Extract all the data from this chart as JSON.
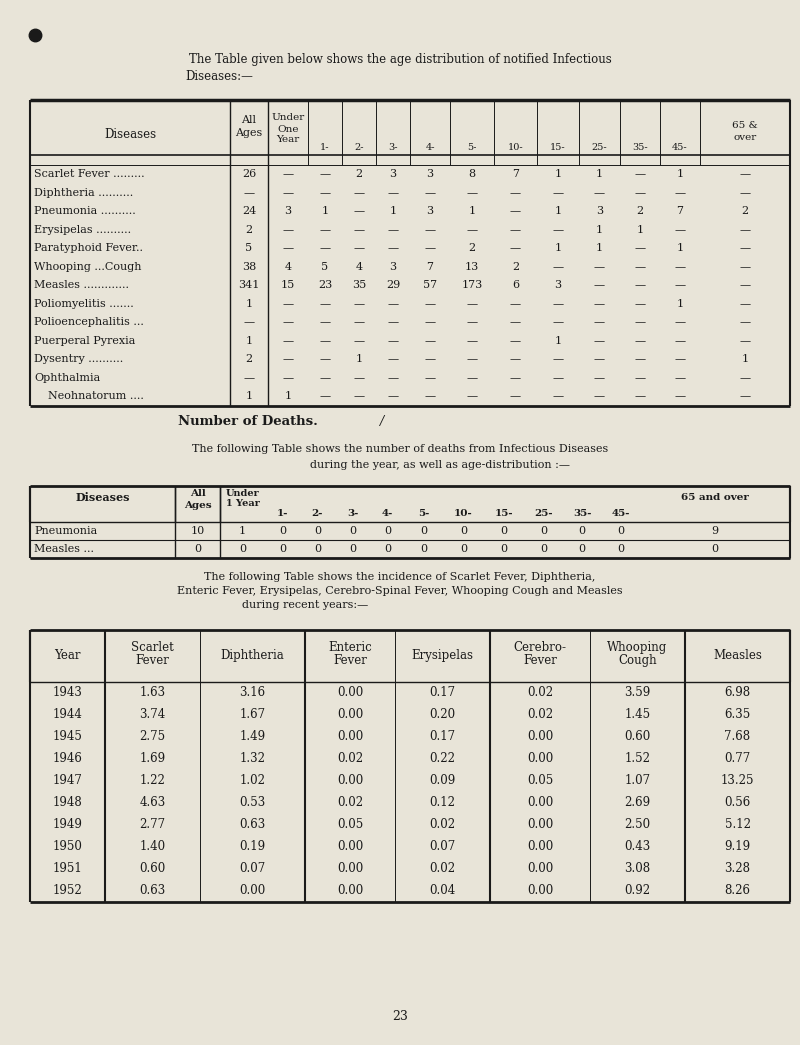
{
  "bg_color": "#e8e4d8",
  "title1": "The Table given below shows the age distribution of notified Infectious",
  "title2": "Diseases:—",
  "table1_rows": [
    [
      "Scarlet Fever .........",
      "26",
      "—",
      "—",
      "2",
      "3",
      "3",
      "8",
      "7",
      "1",
      "1",
      "—",
      "1",
      "—"
    ],
    [
      "Diphtheria ..........",
      "—",
      "—",
      "—",
      "—",
      "—",
      "—",
      "—",
      "—",
      "—",
      "—",
      "—",
      "—",
      "—"
    ],
    [
      "Pneumonia ..........",
      "24",
      "3",
      "1",
      "—",
      "1",
      "3",
      "1",
      "—",
      "1",
      "3",
      "2",
      "7",
      "2"
    ],
    [
      "Erysipelas ..........",
      "2",
      "—",
      "—",
      "—",
      "—",
      "—",
      "—",
      "—",
      "—",
      "1",
      "1",
      "—",
      "—"
    ],
    [
      "Paratyphoid Fever..",
      "5",
      "—",
      "—",
      "—",
      "—",
      "—",
      "2",
      "—",
      "1",
      "1",
      "—",
      "1",
      "—"
    ],
    [
      "Whooping ...Cough",
      "38",
      "4",
      "5",
      "4",
      "3",
      "7",
      "13",
      "2",
      "—",
      "—",
      "—",
      "—",
      "—"
    ],
    [
      "Measles .............",
      "341",
      "15",
      "23",
      "35",
      "29",
      "57",
      "173",
      "6",
      "3",
      "—",
      "—",
      "—",
      "—"
    ],
    [
      "Poliomyelitis .......",
      "1",
      "—",
      "—",
      "—",
      "—",
      "—",
      "—",
      "—",
      "—",
      "—",
      "—",
      "1",
      "—"
    ],
    [
      "Polioencephalitis ...",
      "—",
      "—",
      "—",
      "—",
      "—",
      "—",
      "—",
      "—",
      "—",
      "—",
      "—",
      "—",
      "—"
    ],
    [
      "Puerperal Pyrexia",
      "1",
      "—",
      "—",
      "—",
      "—",
      "—",
      "—",
      "—",
      "1",
      "—",
      "—",
      "—",
      "—"
    ],
    [
      "Dysentry ..........",
      "2",
      "—",
      "—",
      "1",
      "—",
      "—",
      "—",
      "—",
      "—",
      "—",
      "—",
      "—",
      "1"
    ],
    [
      "Ophthalmia",
      "—",
      "—",
      "—",
      "—",
      "—",
      "—",
      "—",
      "—",
      "—",
      "—",
      "—",
      "—",
      "—"
    ],
    [
      "    Neohnatorum ....",
      "1",
      "1",
      "—",
      "—",
      "—",
      "—",
      "—",
      "—",
      "—",
      "—",
      "—",
      "—",
      "—"
    ]
  ],
  "deaths_title": "Number of Deaths.",
  "deaths_italic": "/",
  "deaths_intro1": "The following Table shows the number of deaths from Infectious Diseases",
  "deaths_intro2": "during the year, as well as age-distribution :—",
  "table2_rows": [
    [
      "Pneumonia",
      "10",
      "1",
      "0",
      "0",
      "0",
      "0",
      "0",
      "0",
      "0",
      "0",
      "0",
      "0",
      "9"
    ],
    [
      "Measles ...",
      "0",
      "0",
      "0",
      "0",
      "0",
      "0",
      "0",
      "0",
      "0",
      "0",
      "0",
      "0",
      "0"
    ]
  ],
  "incidence_intro1": "The following Table shows the incidence of Scarlet Fever, Diphtheria,",
  "incidence_intro2": "Enteric Fever, Erysipelas, Cerebro-Spinal Fever, Whooping Cough and Measles",
  "incidence_intro3": "during recent years:—",
  "table3_rows": [
    [
      "1943",
      "1.63",
      "3.16",
      "0.00",
      "0.17",
      "0.02",
      "3.59",
      "6.98"
    ],
    [
      "1944",
      "3.74",
      "1.67",
      "0.00",
      "0.20",
      "0.02",
      "1.45",
      "6.35"
    ],
    [
      "1945",
      "2.75",
      "1.49",
      "0.00",
      "0.17",
      "0.00",
      "0.60",
      "7.68"
    ],
    [
      "1946",
      "1.69",
      "1.32",
      "0.02",
      "0.22",
      "0.00",
      "1.52",
      "0.77"
    ],
    [
      "1947",
      "1.22",
      "1.02",
      "0.00",
      "0.09",
      "0.05",
      "1.07",
      "13.25"
    ],
    [
      "1948",
      "4.63",
      "0.53",
      "0.02",
      "0.12",
      "0.00",
      "2.69",
      "0.56"
    ],
    [
      "1949",
      "2.77",
      "0.63",
      "0.05",
      "0.02",
      "0.00",
      "2.50",
      "5.12"
    ],
    [
      "1950",
      "1.40",
      "0.19",
      "0.00",
      "0.07",
      "0.00",
      "0.43",
      "9.19"
    ],
    [
      "1951",
      "0.60",
      "0.07",
      "0.00",
      "0.02",
      "0.00",
      "3.08",
      "3.28"
    ],
    [
      "1952",
      "0.63",
      "0.00",
      "0.00",
      "0.04",
      "0.00",
      "0.92",
      "8.26"
    ]
  ],
  "page_number": "23"
}
